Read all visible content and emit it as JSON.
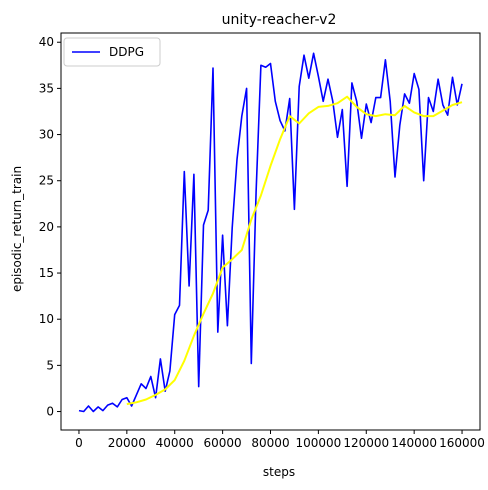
{
  "chart_data": {
    "type": "line",
    "title": "unity-reacher-v2",
    "xlabel": "steps",
    "ylabel": "episodic_return_train",
    "xlim": [
      -7500,
      167500
    ],
    "ylim": [
      -2,
      41
    ],
    "xticks": [
      0,
      20000,
      40000,
      60000,
      80000,
      100000,
      120000,
      140000,
      160000
    ],
    "yticks": [
      0,
      5,
      10,
      15,
      20,
      25,
      30,
      35,
      40
    ],
    "grid": false,
    "legend": {
      "position": "top-left",
      "entries": [
        "DDPG"
      ]
    },
    "series": [
      {
        "name": "DDPG",
        "color": "#0000ff",
        "x": [
          0,
          2000,
          4000,
          6000,
          8000,
          10000,
          12000,
          14000,
          16000,
          18000,
          20000,
          22000,
          24000,
          26000,
          28000,
          30000,
          32000,
          34000,
          36000,
          38000,
          40000,
          42000,
          44000,
          46000,
          48000,
          50000,
          52000,
          54000,
          56000,
          58000,
          60000,
          62000,
          64000,
          66000,
          68000,
          70000,
          72000,
          74000,
          76000,
          78000,
          80000,
          82000,
          84000,
          86000,
          88000,
          90000,
          92000,
          94000,
          96000,
          98000,
          100000,
          102000,
          104000,
          106000,
          108000,
          110000,
          112000,
          114000,
          116000,
          118000,
          120000,
          122000,
          124000,
          126000,
          128000,
          130000,
          132000,
          134000,
          136000,
          138000,
          140000,
          142000,
          144000,
          146000,
          148000,
          150000,
          152000,
          154000,
          156000,
          158000,
          160000
        ],
        "y": [
          0.1,
          0.0,
          0.6,
          0.0,
          0.5,
          0.1,
          0.7,
          0.9,
          0.5,
          1.3,
          1.5,
          0.6,
          1.8,
          3.0,
          2.5,
          3.8,
          1.5,
          5.7,
          2.2,
          4.4,
          10.5,
          11.5,
          26.0,
          13.6,
          25.7,
          2.7,
          20.2,
          21.8,
          37.2,
          8.6,
          19.1,
          9.3,
          19.9,
          27.3,
          32.0,
          35.0,
          5.2,
          23.8,
          37.5,
          37.3,
          37.7,
          33.6,
          31.5,
          30.4,
          33.9,
          21.9,
          35.2,
          38.6,
          36.1,
          38.8,
          36.3,
          33.6,
          36.0,
          33.6,
          29.7,
          32.7,
          24.4,
          35.6,
          33.6,
          29.6,
          33.3,
          31.3,
          34.0,
          34.0,
          38.1,
          33.6,
          25.4,
          31.0,
          34.4,
          33.4,
          36.6,
          34.9,
          25.0,
          34.0,
          32.5,
          36.0,
          33.2,
          32.1,
          36.2,
          33.2,
          35.5
        ]
      },
      {
        "name": "",
        "color": "#ffff00",
        "x": [
          20000,
          24000,
          28000,
          32000,
          36000,
          40000,
          44000,
          48000,
          52000,
          56000,
          60000,
          64000,
          68000,
          72000,
          76000,
          80000,
          84000,
          88000,
          92000,
          96000,
          100000,
          104000,
          108000,
          112000,
          116000,
          120000,
          124000,
          128000,
          132000,
          136000,
          140000,
          144000,
          148000,
          152000,
          156000,
          160000
        ],
        "y": [
          0.8,
          1.0,
          1.3,
          1.8,
          2.4,
          3.4,
          5.5,
          8.2,
          10.6,
          12.8,
          15.6,
          16.5,
          17.5,
          20.8,
          23.4,
          26.6,
          29.5,
          32.0,
          31.2,
          32.3,
          33.0,
          33.1,
          33.4,
          34.1,
          33.0,
          32.2,
          32.0,
          32.2,
          32.1,
          33.1,
          32.4,
          32.0,
          32.0,
          32.6,
          33.2,
          33.5
        ]
      }
    ]
  }
}
